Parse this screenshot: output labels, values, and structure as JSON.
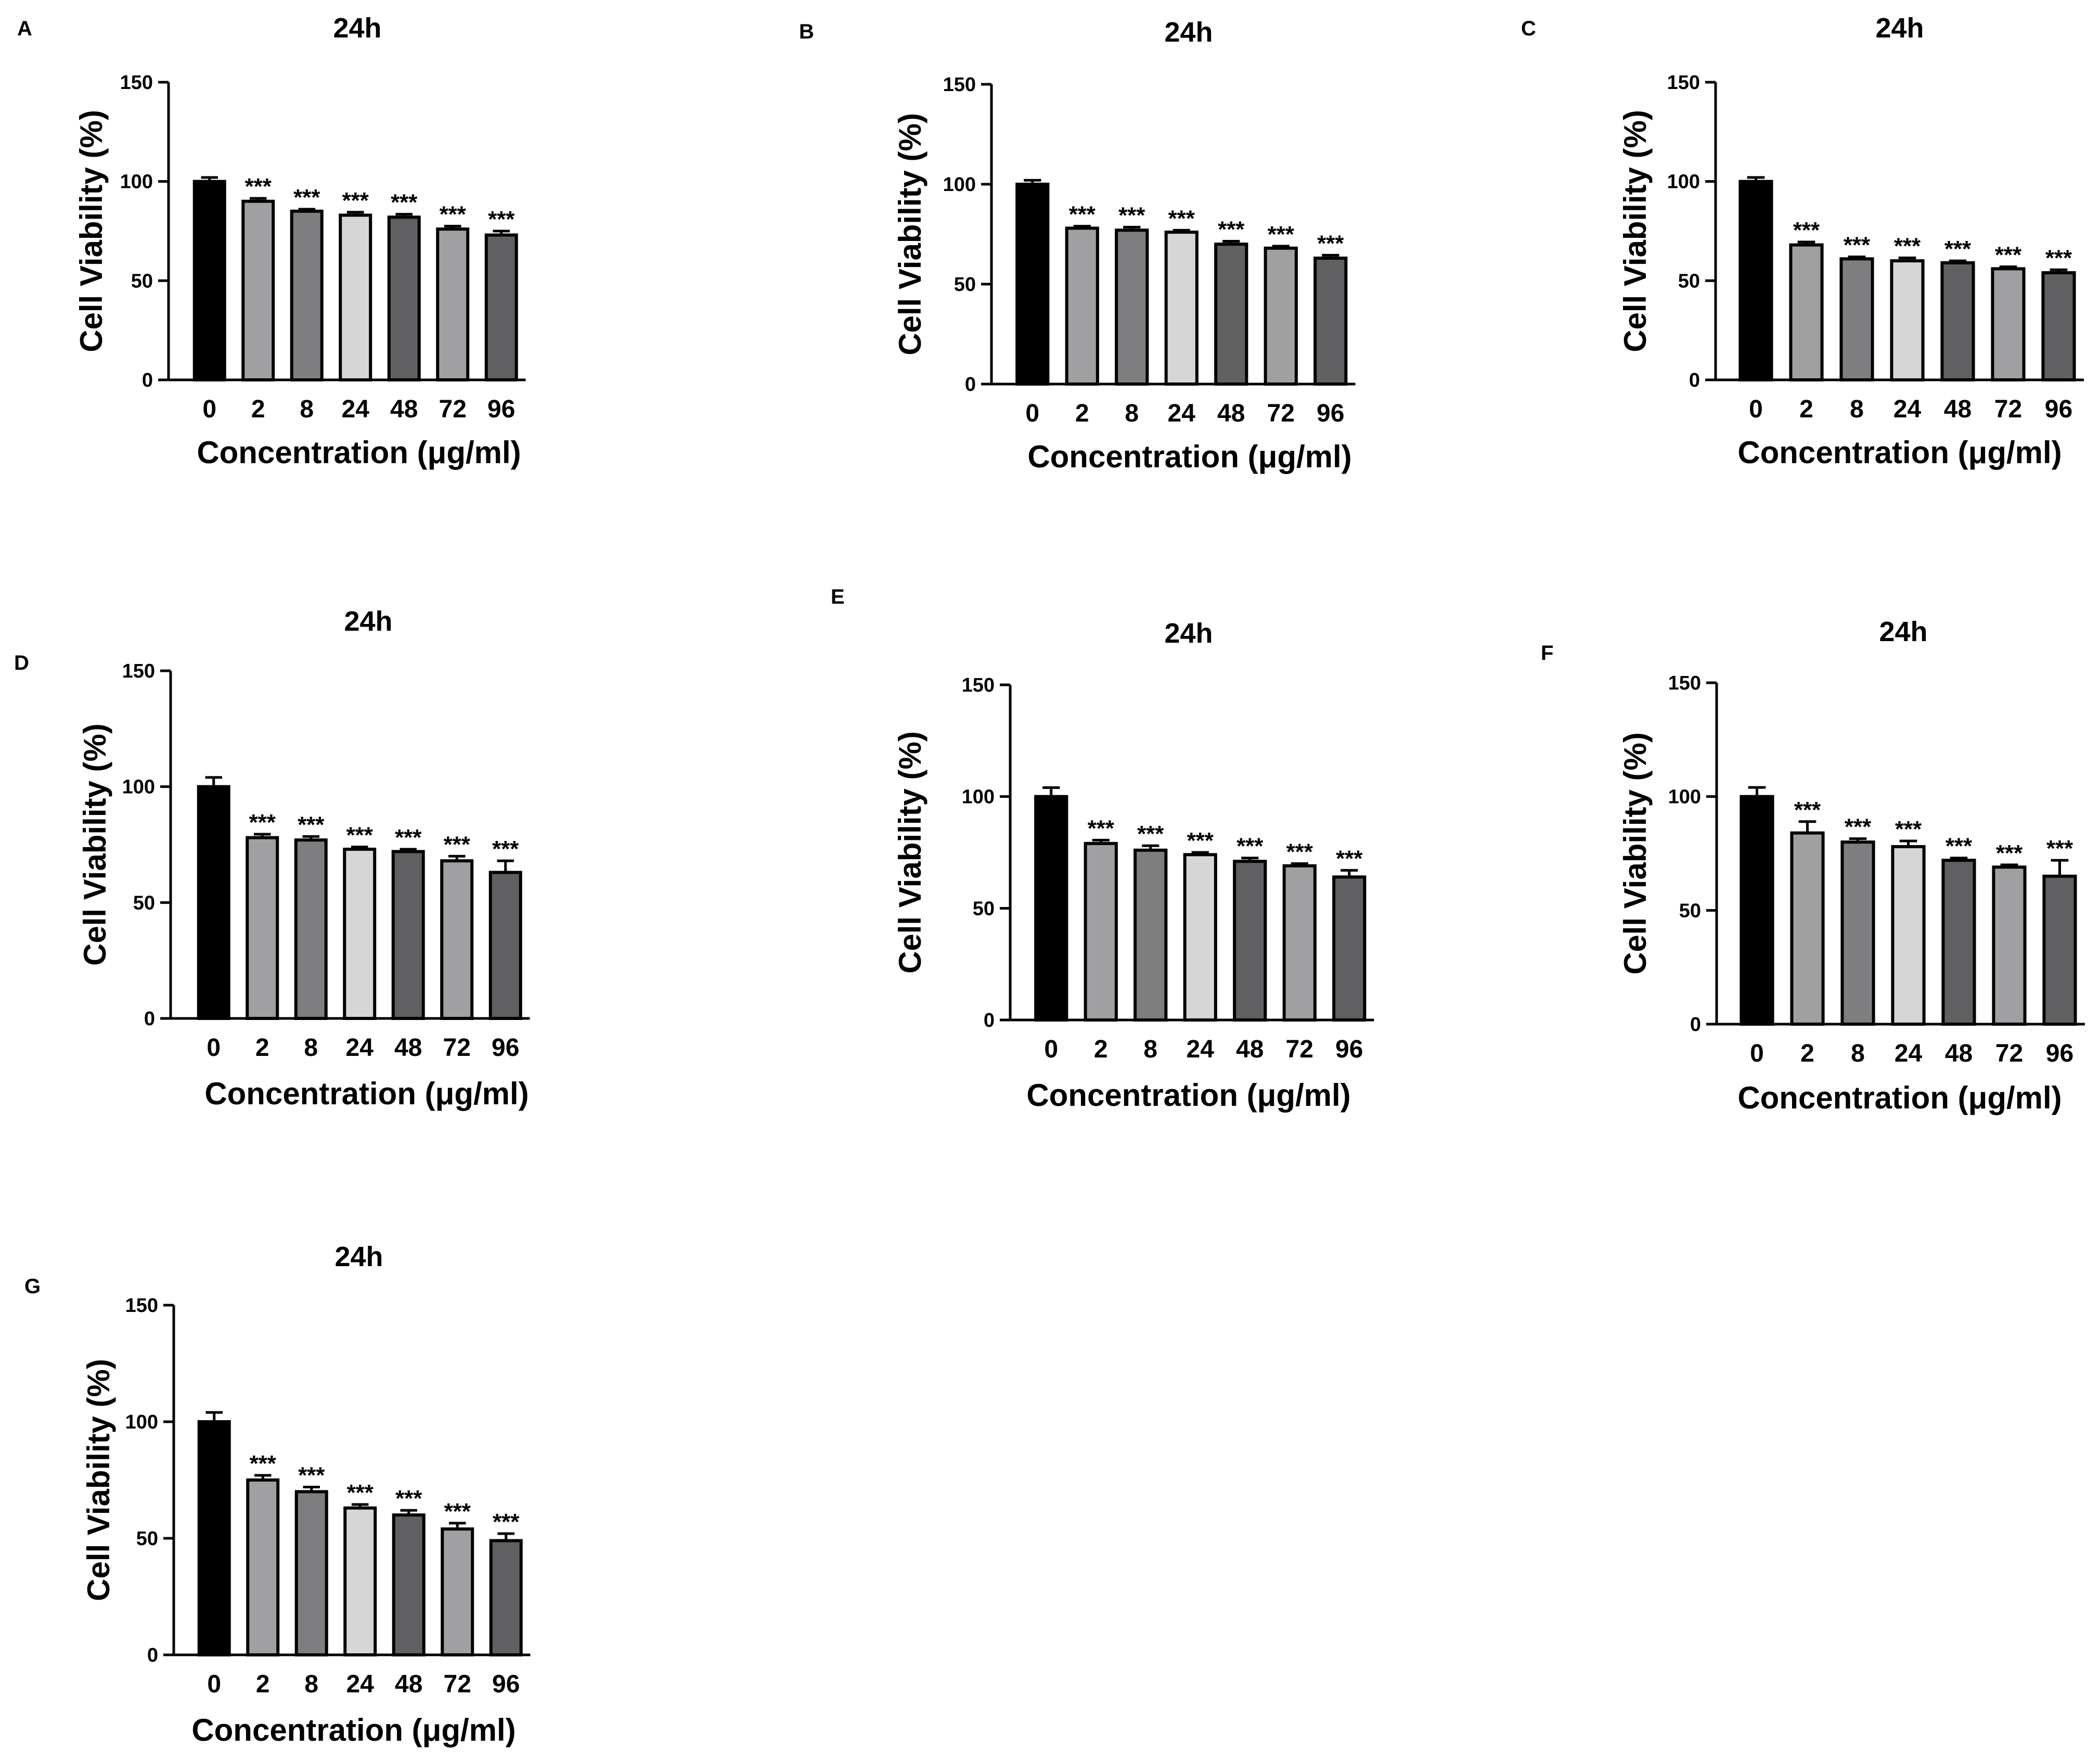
{
  "chart_data": [
    {
      "panel": "A",
      "type": "bar",
      "title": "24h",
      "xlabel": "Concentration (μg/ml)",
      "ylabel": "Cell Viability (%)",
      "ylim": [
        0,
        150
      ],
      "yticks": [
        0,
        50,
        100,
        150
      ],
      "categories": [
        "0",
        "2",
        "8",
        "24",
        "48",
        "72",
        "96"
      ],
      "values": [
        100,
        90,
        85,
        83,
        82,
        76,
        73
      ],
      "errors": [
        2,
        1.5,
        1,
        1.5,
        1.5,
        1.5,
        2
      ],
      "annotations": [
        "",
        "***",
        "***",
        "***",
        "***",
        "***",
        "***"
      ],
      "bar_colors": [
        "#000000",
        "#a0a0a2",
        "#7e7e80",
        "#d6d6d6",
        "#606062",
        "#a0a0a2",
        "#606062"
      ],
      "grid": false
    },
    {
      "panel": "B",
      "type": "bar",
      "title": "24h",
      "xlabel": "Concentration (μg/ml)",
      "ylabel": "Cell Viability (%)",
      "ylim": [
        0,
        150
      ],
      "yticks": [
        0,
        50,
        100,
        150
      ],
      "categories": [
        "0",
        "2",
        "8",
        "24",
        "48",
        "72",
        "96"
      ],
      "values": [
        100,
        78,
        77,
        76,
        70,
        68,
        63
      ],
      "errors": [
        2,
        1,
        1.5,
        1,
        1.5,
        1,
        1.5
      ],
      "annotations": [
        "",
        "***",
        "***",
        "***",
        "***",
        "***",
        "***"
      ],
      "bar_colors": [
        "#000000",
        "#a0a0a2",
        "#7e7e80",
        "#d6d6d6",
        "#606062",
        "#a0a0a2",
        "#606062"
      ],
      "grid": false
    },
    {
      "panel": "C",
      "type": "bar",
      "title": "24h",
      "xlabel": "Concentration (μg/ml)",
      "ylabel": "Cell Viability (%)",
      "ylim": [
        0,
        150
      ],
      "yticks": [
        0,
        50,
        100,
        150
      ],
      "categories": [
        "0",
        "2",
        "8",
        "24",
        "48",
        "72",
        "96"
      ],
      "values": [
        100,
        68,
        61,
        60,
        59,
        56,
        54
      ],
      "errors": [
        2,
        1.5,
        1,
        1.5,
        1,
        1,
        1.5
      ],
      "annotations": [
        "",
        "***",
        "***",
        "***",
        "***",
        "***",
        "***"
      ],
      "bar_colors": [
        "#000000",
        "#a0a0a2",
        "#7e7e80",
        "#d6d6d6",
        "#606062",
        "#a0a0a2",
        "#606062"
      ],
      "grid": false
    },
    {
      "panel": "D",
      "type": "bar",
      "title": "24h",
      "xlabel": "Concentration (μg/ml)",
      "ylabel": "Cell Viability (%)",
      "ylim": [
        0,
        150
      ],
      "yticks": [
        0,
        50,
        100,
        150
      ],
      "categories": [
        "0",
        "2",
        "8",
        "24",
        "48",
        "72",
        "96"
      ],
      "values": [
        100,
        78,
        77,
        73,
        72,
        68,
        63
      ],
      "errors": [
        4,
        1.5,
        1.5,
        1,
        1,
        2,
        5
      ],
      "annotations": [
        "",
        "***",
        "***",
        "***",
        "***",
        "***",
        "***"
      ],
      "bar_colors": [
        "#000000",
        "#a0a0a2",
        "#7e7e80",
        "#d6d6d6",
        "#606062",
        "#a0a0a2",
        "#606062"
      ],
      "grid": false
    },
    {
      "panel": "E",
      "type": "bar",
      "title": "24h",
      "xlabel": "Concentration (μg/ml)",
      "ylabel": "Cell Viability (%)",
      "ylim": [
        0,
        150
      ],
      "yticks": [
        0,
        50,
        100,
        150
      ],
      "categories": [
        "0",
        "2",
        "8",
        "24",
        "48",
        "72",
        "96"
      ],
      "values": [
        100,
        79,
        76,
        74,
        71,
        69,
        64
      ],
      "errors": [
        4,
        1.5,
        2,
        1,
        1.5,
        1,
        3
      ],
      "annotations": [
        "",
        "***",
        "***",
        "***",
        "***",
        "***",
        "***"
      ],
      "bar_colors": [
        "#000000",
        "#a0a0a2",
        "#7e7e80",
        "#d6d6d6",
        "#606062",
        "#a0a0a2",
        "#606062"
      ],
      "grid": false
    },
    {
      "panel": "F",
      "type": "bar",
      "title": "24h",
      "xlabel": "Concentration (μg/ml)",
      "ylabel": "Cell Viability (%)",
      "ylim": [
        0,
        150
      ],
      "yticks": [
        0,
        50,
        100,
        150
      ],
      "categories": [
        "0",
        "2",
        "8",
        "24",
        "48",
        "72",
        "96"
      ],
      "values": [
        100,
        84,
        80,
        78,
        72,
        69,
        65
      ],
      "errors": [
        4,
        5,
        1.5,
        2.5,
        1,
        1,
        7
      ],
      "annotations": [
        "",
        "***",
        "***",
        "***",
        "***",
        "***",
        "***"
      ],
      "bar_colors": [
        "#000000",
        "#a0a0a2",
        "#7e7e80",
        "#d6d6d6",
        "#606062",
        "#a0a0a2",
        "#606062"
      ],
      "grid": false
    },
    {
      "panel": "G",
      "type": "bar",
      "title": "24h",
      "xlabel": "Concentration (μg/ml)",
      "ylabel": "Cell Viability (%)",
      "ylim": [
        0,
        150
      ],
      "yticks": [
        0,
        50,
        100,
        150
      ],
      "categories": [
        "0",
        "2",
        "8",
        "24",
        "48",
        "72",
        "96"
      ],
      "values": [
        100,
        75,
        70,
        63,
        60,
        54,
        49
      ],
      "errors": [
        4,
        2,
        2,
        1.5,
        2,
        2.5,
        3
      ],
      "annotations": [
        "",
        "***",
        "***",
        "***",
        "***",
        "***",
        "***"
      ],
      "bar_colors": [
        "#000000",
        "#a0a0a2",
        "#7e7e80",
        "#d6d6d6",
        "#606062",
        "#a0a0a2",
        "#606062"
      ],
      "grid": false
    }
  ]
}
